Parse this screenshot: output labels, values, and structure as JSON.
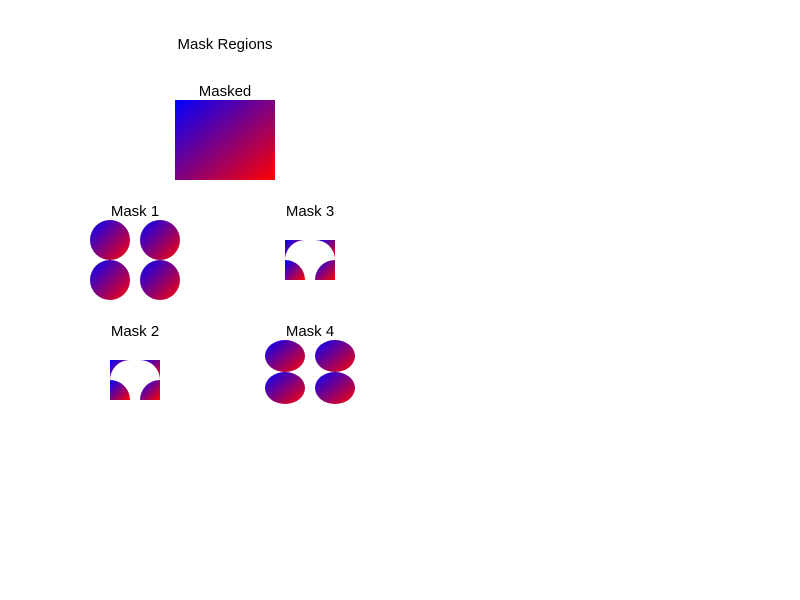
{
  "title": "Mask Regions",
  "masked": {
    "label": "Masked",
    "gradient": {
      "start": "#0000ff",
      "end": "#ff0000"
    }
  },
  "masks": [
    {
      "id": "mask1",
      "label": "Mask 1",
      "shape": "circles"
    },
    {
      "id": "mask2",
      "label": "Mask 2",
      "shape": "concave-corners"
    },
    {
      "id": "mask3",
      "label": "Mask 3",
      "shape": "concave-corners"
    },
    {
      "id": "mask4",
      "label": "Mask 4",
      "shape": "ellipses"
    }
  ]
}
